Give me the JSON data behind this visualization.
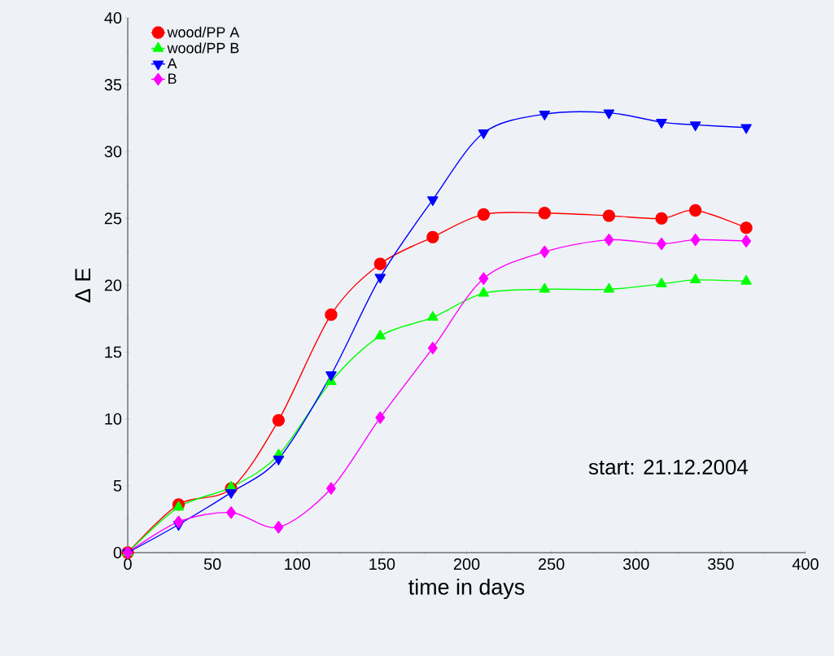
{
  "chart_data": {
    "type": "line",
    "xlabel": "time in days",
    "ylabel": "Δ E",
    "x": [
      0,
      30,
      61,
      89,
      120,
      149,
      180,
      210,
      246,
      284,
      315,
      335,
      365
    ],
    "series": [
      {
        "name": "wood/PP A",
        "color": "#ff0000",
        "marker": "circle",
        "values": [
          0,
          3.6,
          4.8,
          9.9,
          17.8,
          21.6,
          23.6,
          25.3,
          25.4,
          25.2,
          25.0,
          25.6,
          24.3
        ]
      },
      {
        "name": "wood/PP B",
        "color": "#00ff00",
        "marker": "triangle",
        "values": [
          0,
          3.4,
          4.9,
          7.3,
          12.8,
          16.2,
          17.6,
          19.4,
          19.7,
          19.7,
          20.1,
          20.4,
          20.3
        ]
      },
      {
        "name": "A",
        "color": "#0000ff",
        "marker": "triangle-down",
        "values": [
          0,
          2.1,
          4.5,
          7.0,
          13.3,
          20.6,
          26.4,
          31.4,
          32.8,
          32.9,
          32.2,
          32.0,
          31.8
        ]
      },
      {
        "name": "B",
        "color": "#ff00ff",
        "marker": "diamond",
        "values": [
          0,
          2.3,
          3.0,
          1.9,
          4.8,
          10.1,
          15.3,
          20.5,
          22.5,
          23.4,
          23.1,
          23.4,
          23.3
        ]
      }
    ],
    "xlim": [
      0,
      400
    ],
    "xticks": [
      0,
      50,
      100,
      150,
      200,
      250,
      300,
      350,
      400
    ],
    "ylim": [
      0,
      40
    ],
    "yticks": [
      0,
      5,
      10,
      15,
      20,
      25,
      30,
      35,
      40
    ],
    "grid": false,
    "legend": "top left",
    "annotations": [
      "start: 21.12.2004"
    ]
  }
}
